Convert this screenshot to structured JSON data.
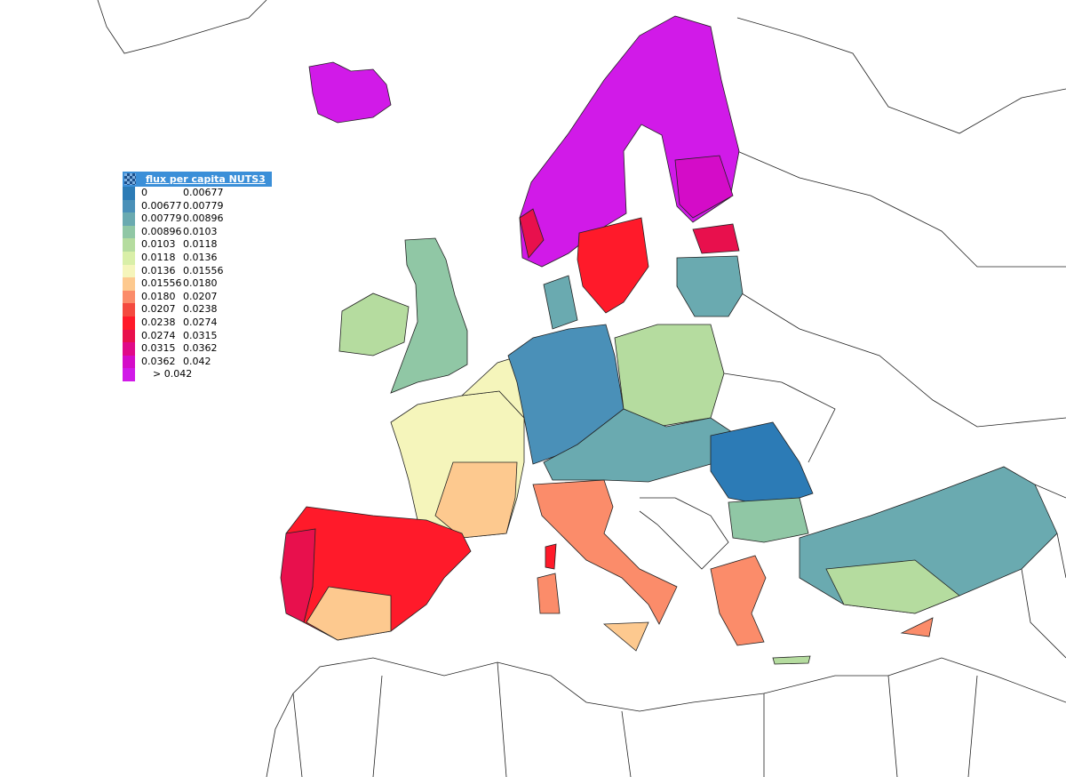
{
  "legend": {
    "title": "flux per capita NUTS3",
    "rows": [
      {
        "from": "0",
        "to": "0.00677",
        "color": "#2c7bb6"
      },
      {
        "from": "0.00677",
        "to": "0.00779",
        "color": "#4a90b8"
      },
      {
        "from": "0.00779",
        "to": "0.00896",
        "color": "#6aaab0"
      },
      {
        "from": "0.00896",
        "to": "0.0103",
        "color": "#90c7a5"
      },
      {
        "from": "0.0103",
        "to": "0.0118",
        "color": "#b5dc9f"
      },
      {
        "from": "0.0118",
        "to": "0.0136",
        "color": "#d9efa8"
      },
      {
        "from": "0.0136",
        "to": "0.01556",
        "color": "#f5f5bb"
      },
      {
        "from": "0.01556",
        "to": "0.0180",
        "color": "#fdc98f"
      },
      {
        "from": "0.0180",
        "to": "0.0207",
        "color": "#fb8c6a"
      },
      {
        "from": "0.0207",
        "to": "0.0238",
        "color": "#f44a3f"
      },
      {
        "from": "0.0238",
        "to": "0.0274",
        "color": "#ff1a2a"
      },
      {
        "from": "0.0274",
        "to": "0.0315",
        "color": "#e8104d"
      },
      {
        "from": "0.0315",
        "to": "0.0362",
        "color": "#e00a88"
      },
      {
        "from": "0.0362",
        "to": "0.042",
        "color": "#d40cc8"
      },
      {
        "label": ">  0.042",
        "color": "#d11ae8"
      }
    ]
  }
}
